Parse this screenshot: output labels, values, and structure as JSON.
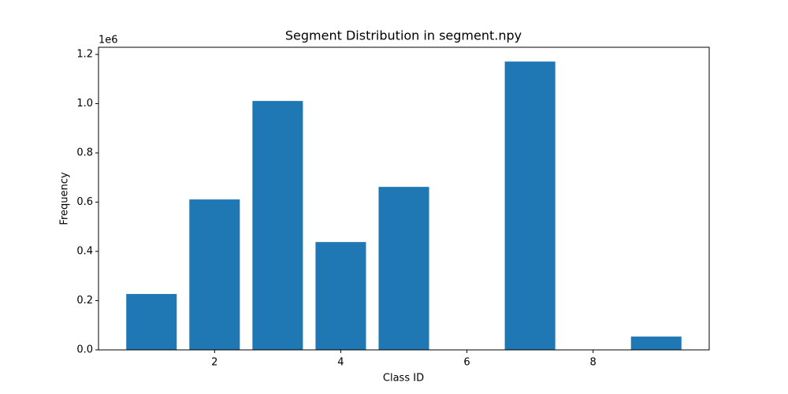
{
  "chart_data": {
    "type": "bar",
    "title": "Segment Distribution in segment.npy",
    "x_label": "Class ID",
    "y_label": "Frequency",
    "y_offset_label": "1e6",
    "x": [
      1,
      2,
      3,
      4,
      5,
      7,
      9
    ],
    "values": [
      227000,
      611000,
      1011000,
      438000,
      662000,
      1171000,
      54000
    ],
    "color": "#1f77b4",
    "xlim": [
      0.16,
      9.84
    ],
    "xticks": [
      2,
      4,
      6,
      8
    ],
    "ylim": [
      0,
      1229000
    ],
    "yticks": [
      {
        "value": 0,
        "label": "0.0"
      },
      {
        "value": 200000,
        "label": "0.2"
      },
      {
        "value": 400000,
        "label": "0.4"
      },
      {
        "value": 600000,
        "label": "0.6"
      },
      {
        "value": 800000,
        "label": "0.8"
      },
      {
        "value": 1000000,
        "label": "1.0"
      },
      {
        "value": 1200000,
        "label": "1.2"
      }
    ],
    "grid": false
  }
}
